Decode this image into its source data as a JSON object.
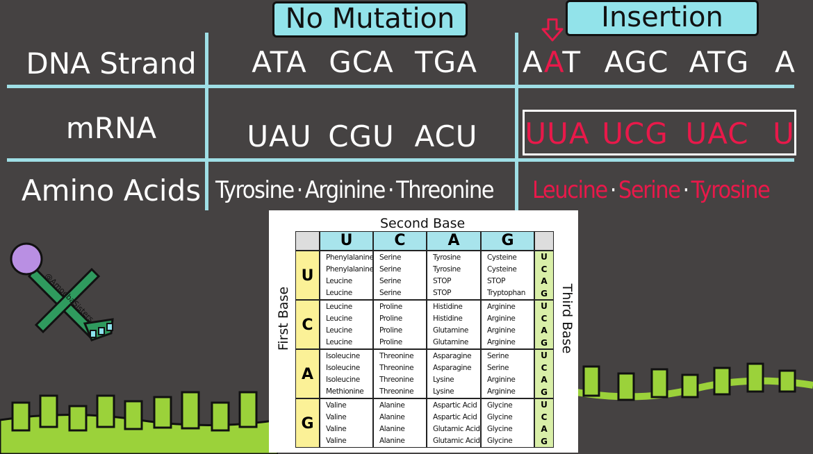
{
  "headers": {
    "no_mutation": "No Mutation",
    "insertion": "Insertion"
  },
  "row_labels": {
    "dna": "DNA Strand",
    "mrna": "mRNA",
    "amino": "Amino Acids"
  },
  "no_mutation": {
    "dna": [
      "ATA",
      "GCA",
      "TGA"
    ],
    "mrna": [
      "UAU",
      "CGU",
      "ACU"
    ],
    "amino": [
      "Tyrosine",
      "Arginine",
      "Threonine"
    ]
  },
  "insertion": {
    "dna_first": [
      "A",
      "A",
      "T"
    ],
    "dna": [
      "AGC",
      "ATG",
      "A"
    ],
    "mrna": [
      "UUA",
      "UCG",
      "UAC",
      "U"
    ],
    "amino": [
      "Leucine",
      "Serine",
      "Tyrosine"
    ]
  },
  "separator": "·",
  "colors": {
    "background": "#454242",
    "accent": "#92e3ea",
    "mutation": "#e8194a",
    "grass": "#9bd23a"
  },
  "codon_table": {
    "title": "Second Base",
    "first_base_label": "First Base",
    "third_base_label": "Third Base",
    "second_bases": [
      "U",
      "C",
      "A",
      "G"
    ],
    "first_bases": [
      "U",
      "C",
      "A",
      "G"
    ],
    "third_bases": [
      "U",
      "C",
      "A",
      "G"
    ],
    "rows": [
      [
        [
          "Phenylalanine",
          "Phenylalanine",
          "Leucine",
          "Leucine"
        ],
        [
          "Serine",
          "Serine",
          "Serine",
          "Serine"
        ],
        [
          "Tyrosine",
          "Tyrosine",
          "STOP",
          "STOP"
        ],
        [
          "Cysteine",
          "Cysteine",
          "STOP",
          "Tryptophan"
        ]
      ],
      [
        [
          "Leucine",
          "Leucine",
          "Leucine",
          "Leucine"
        ],
        [
          "Proline",
          "Proline",
          "Proline",
          "Proline"
        ],
        [
          "Histidine",
          "Histidine",
          "Glutamine",
          "Glutamine"
        ],
        [
          "Arginine",
          "Arginine",
          "Arginine",
          "Arginine"
        ]
      ],
      [
        [
          "Isoleucine",
          "Isoleucine",
          "Isoleucine",
          "Methionine"
        ],
        [
          "Threonine",
          "Threonine",
          "Threonine",
          "Threonine"
        ],
        [
          "Asparagine",
          "Asparagine",
          "Lysine",
          "Lysine"
        ],
        [
          "Serine",
          "Serine",
          "Arginine",
          "Arginine"
        ]
      ],
      [
        [
          "Valine",
          "Valine",
          "Valine",
          "Valine"
        ],
        [
          "Alanine",
          "Alanine",
          "Alanine",
          "Alanine"
        ],
        [
          "Aspartic Acid",
          "Aspartic Acid",
          "Glutamic Acid",
          "Glutamic Acid"
        ],
        [
          "Glycine",
          "Glycine",
          "Glycine",
          "Glycine"
        ]
      ]
    ]
  },
  "watermark": "@AmoebaSisters"
}
